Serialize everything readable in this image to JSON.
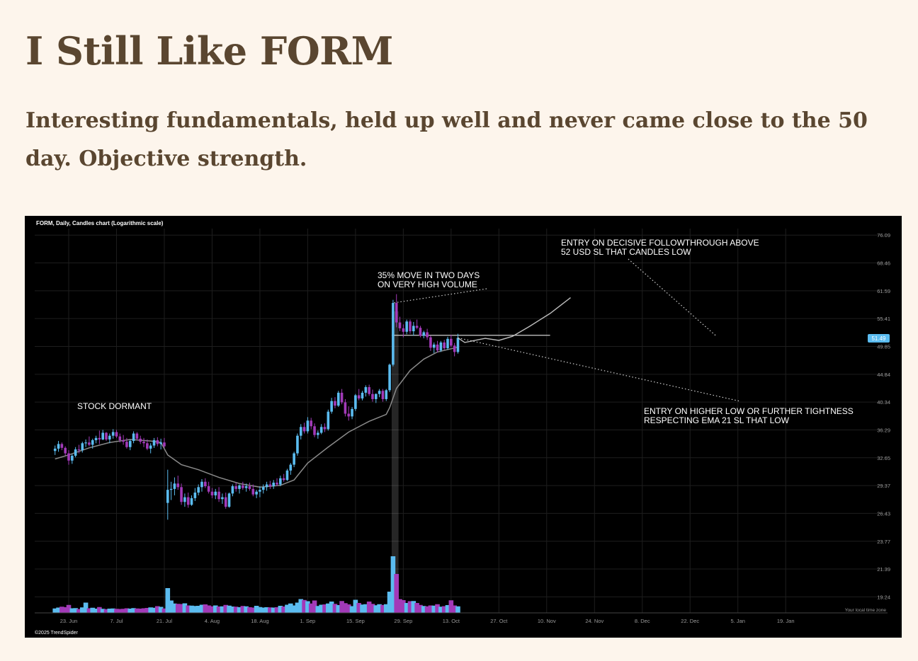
{
  "article": {
    "title": "I Still Like FORM",
    "subtitle": "Interesting fundamentals, held up well and never came close to the 50 day. Objective strength."
  },
  "chart_data": {
    "type": "candlestick",
    "title": "FORM, Daily, Candles chart (Logarithmic scale)",
    "scale": "log",
    "ylim": [
      18.5,
      78
    ],
    "y_ticks": [
      76.09,
      68.46,
      61.59,
      55.41,
      49.85,
      44.84,
      40.34,
      36.29,
      32.65,
      29.37,
      26.43,
      23.77,
      21.39,
      19.24
    ],
    "x_ticks": [
      "23. Jun",
      "7. Jul",
      "21. Jul",
      "4. Aug",
      "18. Aug",
      "1. Sep",
      "15. Sep",
      "29. Sep",
      "13. Oct",
      "27. Oct",
      "10. Nov",
      "24. Nov",
      "8. Dec",
      "22. Dec",
      "5. Jan",
      "19. Jan"
    ],
    "x_tick_day_offsets": [
      0,
      14,
      28,
      42,
      56,
      70,
      84,
      98,
      112,
      126,
      140,
      154,
      168,
      182,
      196,
      210
    ],
    "last_price": "51.49",
    "colors": {
      "up": "#5bbcf0",
      "down": "#a23ab8",
      "ema": "#8a8a8a",
      "projection": "#bdbdbd",
      "last_price_badge": "#5bbcf0"
    },
    "watermark": "©2025 TrendSpider",
    "time_zone_label": "Your local time zone",
    "annotations": [
      {
        "id": "dormant",
        "lines": [
          "STOCK DORMANT"
        ]
      },
      {
        "id": "move",
        "lines": [
          "35% MOVE IN TWO DAYS",
          "ON VERY HIGH VOLUME"
        ]
      },
      {
        "id": "entry1",
        "lines": [
          "ENTRY ON DECISIVE FOLLOWTHROUGH ABOVE",
          "52 USD SL THAT CANDLES LOW"
        ]
      },
      {
        "id": "entry2",
        "lines": [
          "ENTRY ON HIGHER LOW OR FURTHER TIGHTNESS",
          "RESPECTING EMA 21 SL THAT LOW"
        ]
      }
    ],
    "resistance_level": 52,
    "highlight_day_range": [
      129,
      131
    ],
    "candles_day_offsets_and_ohlc": [
      [
        -4,
        33.5,
        34.2,
        33.0,
        33.8,
        2.5
      ],
      [
        -3,
        33.8,
        34.8,
        33.4,
        34.4,
        3
      ],
      [
        -2,
        34.4,
        34.6,
        33.6,
        33.9,
        3.5
      ],
      [
        -1,
        33.9,
        34.1,
        32.9,
        33.2,
        3.2
      ],
      [
        0,
        33.2,
        33.6,
        31.8,
        32.3,
        4.5
      ],
      [
        1,
        32.3,
        33.1,
        31.9,
        32.9,
        2.6
      ],
      [
        2,
        32.9,
        34.0,
        32.7,
        33.7,
        2.7
      ],
      [
        3,
        33.7,
        34.3,
        33.2,
        33.6,
        2.2
      ],
      [
        4,
        33.6,
        34.7,
        33.3,
        34.5,
        3.1
      ],
      [
        5,
        34.5,
        35.0,
        34.0,
        34.6,
        5.8
      ],
      [
        6,
        34.6,
        35.4,
        34.1,
        34.3,
        2.6
      ],
      [
        7,
        34.3,
        35.1,
        33.8,
        34.9,
        2.9
      ],
      [
        8,
        34.9,
        35.5,
        34.5,
        35.2,
        2.4
      ],
      [
        9,
        35.2,
        36.2,
        34.4,
        35.0,
        3.3
      ],
      [
        10,
        35.0,
        36.3,
        34.9,
        35.9,
        2.3
      ],
      [
        11,
        35.9,
        36.0,
        34.8,
        35.0,
        2.1
      ],
      [
        12,
        35.0,
        35.8,
        34.5,
        35.5,
        2.4
      ],
      [
        13,
        35.5,
        36.4,
        35.1,
        36.0,
        2.5
      ],
      [
        14,
        36.0,
        36.3,
        35.2,
        35.4,
        2.3
      ],
      [
        15,
        35.4,
        35.8,
        34.6,
        34.9,
        2.2
      ],
      [
        16,
        34.9,
        35.6,
        34.3,
        34.7,
        2.3
      ],
      [
        17,
        34.7,
        35.2,
        33.8,
        34.0,
        2.6
      ],
      [
        18,
        34.0,
        35.0,
        33.6,
        34.8,
        2.4
      ],
      [
        19,
        34.8,
        36.1,
        34.5,
        35.8,
        2.7
      ],
      [
        20,
        35.8,
        36.0,
        34.9,
        35.1,
        2.5
      ],
      [
        21,
        35.1,
        35.5,
        34.4,
        34.7,
        2.4
      ],
      [
        22,
        34.7,
        35.2,
        34.0,
        34.5,
        2.6
      ],
      [
        23,
        34.5,
        35.0,
        33.6,
        33.8,
        2.8
      ],
      [
        24,
        33.8,
        34.5,
        33.2,
        34.2,
        3.1
      ],
      [
        25,
        34.2,
        35.2,
        33.9,
        34.9,
        2.9
      ],
      [
        26,
        34.9,
        35.3,
        34.1,
        34.4,
        3.8
      ],
      [
        27,
        34.4,
        35.1,
        33.7,
        34.6,
        3.4
      ],
      [
        28,
        34.6,
        35.2,
        33.9,
        34.1,
        2.5
      ],
      [
        29,
        27.5,
        31.2,
        25.8,
        28.9,
        14
      ],
      [
        30,
        28.9,
        29.8,
        27.8,
        29.0,
        7
      ],
      [
        31,
        29.0,
        30.3,
        28.3,
        29.6,
        5.3
      ],
      [
        32,
        29.6,
        30.5,
        28.9,
        29.2,
        5.1
      ],
      [
        33,
        29.2,
        29.6,
        27.3,
        27.6,
        5.0
      ],
      [
        34,
        27.6,
        28.5,
        27.1,
        28.1,
        5.4
      ],
      [
        35,
        28.1,
        28.6,
        27.0,
        27.3,
        4.2
      ],
      [
        36,
        27.3,
        28.3,
        27.2,
        28.0,
        4.1
      ],
      [
        37,
        28.0,
        29.1,
        27.7,
        28.6,
        3.9
      ],
      [
        38,
        28.6,
        29.5,
        28.3,
        29.2,
        4.0
      ],
      [
        39,
        29.2,
        30.1,
        28.7,
        29.8,
        4.6
      ],
      [
        40,
        29.8,
        30.2,
        29.1,
        29.3,
        4.8
      ],
      [
        41,
        29.3,
        29.8,
        28.5,
        28.7,
        4.2
      ],
      [
        42,
        28.7,
        29.1,
        28.0,
        28.3,
        3.7
      ],
      [
        43,
        28.3,
        29.0,
        27.9,
        28.7,
        4.2
      ],
      [
        44,
        28.7,
        29.2,
        27.6,
        27.9,
        3.6
      ],
      [
        45,
        27.9,
        28.5,
        27.4,
        28.1,
        3.7
      ],
      [
        46,
        28.1,
        28.6,
        26.9,
        27.1,
        4.5
      ],
      [
        47,
        27.1,
        28.6,
        27.0,
        28.5,
        4.1
      ],
      [
        48,
        28.5,
        29.5,
        28.2,
        29.3,
        3.6
      ],
      [
        49,
        29.3,
        29.7,
        28.7,
        29.0,
        3.5
      ],
      [
        50,
        29.0,
        29.5,
        28.5,
        29.4,
        3.2
      ],
      [
        51,
        29.4,
        29.8,
        28.9,
        29.1,
        3.9
      ],
      [
        52,
        29.1,
        29.6,
        28.7,
        29.3,
        3.7
      ],
      [
        53,
        29.3,
        29.7,
        28.8,
        29.0,
        3.2
      ],
      [
        54,
        29.0,
        29.5,
        28.2,
        28.4,
        3.0
      ],
      [
        55,
        28.4,
        28.9,
        28.0,
        28.7,
        4.0
      ],
      [
        56,
        28.7,
        29.3,
        28.1,
        28.9,
        3.3
      ],
      [
        57,
        28.9,
        29.5,
        28.5,
        29.2,
        3.0
      ],
      [
        58,
        29.2,
        29.8,
        28.8,
        29.5,
        3.2
      ],
      [
        59,
        29.5,
        29.9,
        29.0,
        29.3,
        3.1
      ],
      [
        60,
        29.3,
        30.0,
        29.0,
        29.7,
        3.0
      ],
      [
        61,
        29.7,
        30.2,
        29.3,
        29.5,
        3.2
      ],
      [
        62,
        29.5,
        30.5,
        29.3,
        30.2,
        4.0
      ],
      [
        63,
        30.2,
        30.7,
        29.8,
        30.0,
        3.6
      ],
      [
        64,
        30.0,
        31.3,
        29.9,
        31.1,
        4.6
      ],
      [
        65,
        31.1,
        32.0,
        30.6,
        31.8,
        5.3
      ],
      [
        66,
        31.8,
        33.4,
        31.5,
        33.2,
        4.2
      ],
      [
        67,
        33.2,
        35.8,
        32.9,
        35.5,
        5.8
      ],
      [
        68,
        35.5,
        37.1,
        35.0,
        36.7,
        7.8
      ],
      [
        69,
        36.7,
        37.3,
        35.8,
        36.1,
        7.3
      ],
      [
        70,
        36.1,
        38.1,
        35.8,
        37.6,
        6.6
      ],
      [
        71,
        37.6,
        38.0,
        36.4,
        36.8,
        5.3
      ],
      [
        72,
        36.8,
        37.2,
        35.3,
        35.6,
        7.0
      ],
      [
        73,
        35.6,
        36.2,
        35.1,
        35.9,
        3.9
      ],
      [
        74,
        35.9,
        37.1,
        35.7,
        36.7,
        4.6
      ],
      [
        75,
        36.7,
        37.2,
        36.0,
        36.4,
        4.8
      ],
      [
        76,
        36.4,
        39.2,
        36.2,
        38.9,
        5.3
      ],
      [
        77,
        38.9,
        41.0,
        38.6,
        40.5,
        6.4
      ],
      [
        78,
        40.5,
        41.1,
        39.4,
        39.8,
        5.1
      ],
      [
        79,
        39.8,
        42.1,
        39.6,
        41.8,
        4.4
      ],
      [
        80,
        41.8,
        42.4,
        40.0,
        40.3,
        6.7
      ],
      [
        81,
        40.3,
        40.8,
        38.2,
        38.6,
        5.5
      ],
      [
        82,
        38.6,
        39.7,
        37.6,
        38.2,
        4.8
      ],
      [
        83,
        38.2,
        39.6,
        37.8,
        39.3,
        3.8
      ],
      [
        84,
        39.3,
        41.6,
        39.0,
        41.4,
        7.4
      ],
      [
        85,
        41.4,
        42.4,
        40.6,
        40.9,
        5.6
      ],
      [
        86,
        40.9,
        42.1,
        40.6,
        41.8,
        4.7
      ],
      [
        87,
        41.8,
        43.0,
        41.2,
        42.7,
        4.9
      ],
      [
        88,
        42.7,
        43.1,
        41.3,
        41.6,
        6.4
      ],
      [
        89,
        41.6,
        42.3,
        40.4,
        40.8,
        5.1
      ],
      [
        90,
        40.8,
        41.7,
        40.2,
        41.6,
        4.3
      ],
      [
        91,
        41.6,
        42.4,
        41.1,
        42.1,
        4.9
      ],
      [
        92,
        42.1,
        42.4,
        40.4,
        40.8,
        4.5
      ],
      [
        93,
        40.8,
        42.4,
        40.5,
        42.2,
        4.9
      ],
      [
        94,
        42.2,
        46.7,
        41.9,
        46.5,
        12
      ],
      [
        95,
        46.5,
        59.5,
        46.2,
        58.8,
        32
      ],
      [
        96,
        58.8,
        60.8,
        53.6,
        54.6,
        22
      ],
      [
        97,
        54.6,
        55.8,
        52.8,
        53.4,
        7.8
      ],
      [
        98,
        53.4,
        54.2,
        51.6,
        52.7,
        7.2
      ],
      [
        99,
        52.7,
        55.2,
        52.2,
        54.8,
        5.6
      ],
      [
        100,
        54.8,
        55.2,
        52.3,
        52.8,
        6.6
      ],
      [
        101,
        52.8,
        54.7,
        51.9,
        53.9,
        6.7
      ],
      [
        102,
        53.9,
        55.2,
        53.2,
        53.5,
        5.6
      ],
      [
        103,
        53.5,
        53.9,
        51.6,
        51.9,
        4.5
      ],
      [
        104,
        51.9,
        52.9,
        51.4,
        52.6,
        3.9
      ],
      [
        105,
        52.6,
        53.3,
        51.1,
        51.6,
        3.7
      ],
      [
        106,
        51.6,
        51.9,
        49.0,
        49.6,
        4.2
      ],
      [
        107,
        49.6,
        50.6,
        48.6,
        50.2,
        4.1
      ],
      [
        108,
        50.2,
        50.9,
        48.7,
        49.1,
        4.9
      ],
      [
        109,
        49.1,
        50.9,
        48.8,
        50.6,
        3.5
      ],
      [
        110,
        50.6,
        51.1,
        49.2,
        49.5,
        3.8
      ],
      [
        111,
        49.5,
        51.7,
        49.2,
        51.3,
        4.4
      ],
      [
        112,
        51.3,
        52.1,
        49.7,
        50.0,
        7.1
      ],
      [
        113,
        50.0,
        50.5,
        48.0,
        48.8,
        4.2
      ],
      [
        114,
        48.8,
        52.3,
        48.5,
        51.5,
        3.7
      ]
    ],
    "ema21_day_offsets_and_values": [
      [
        -4,
        32.5
      ],
      [
        0,
        33.0
      ],
      [
        6,
        33.9
      ],
      [
        12,
        34.6
      ],
      [
        18,
        35.0
      ],
      [
        24,
        34.8
      ],
      [
        27,
        34.6
      ],
      [
        29,
        33.0
      ],
      [
        33,
        31.8
      ],
      [
        38,
        31.2
      ],
      [
        44,
        30.3
      ],
      [
        50,
        29.6
      ],
      [
        56,
        29.2
      ],
      [
        62,
        29.4
      ],
      [
        66,
        30.0
      ],
      [
        70,
        32.0
      ],
      [
        76,
        34.0
      ],
      [
        82,
        36.0
      ],
      [
        88,
        37.5
      ],
      [
        93,
        38.5
      ],
      [
        94,
        39.5
      ],
      [
        96,
        42.5
      ],
      [
        100,
        45.5
      ],
      [
        104,
        47.5
      ],
      [
        108,
        48.8
      ],
      [
        112,
        49.4
      ],
      [
        114,
        49.7
      ]
    ],
    "projection_day_offsets_and_values": [
      [
        114,
        51.49
      ],
      [
        116,
        50.6
      ],
      [
        119,
        51.0
      ],
      [
        122,
        51.4
      ],
      [
        126,
        51.0
      ],
      [
        130,
        51.8
      ],
      [
        135,
        53.8
      ],
      [
        141,
        56.5
      ],
      [
        147,
        60.0
      ]
    ]
  }
}
